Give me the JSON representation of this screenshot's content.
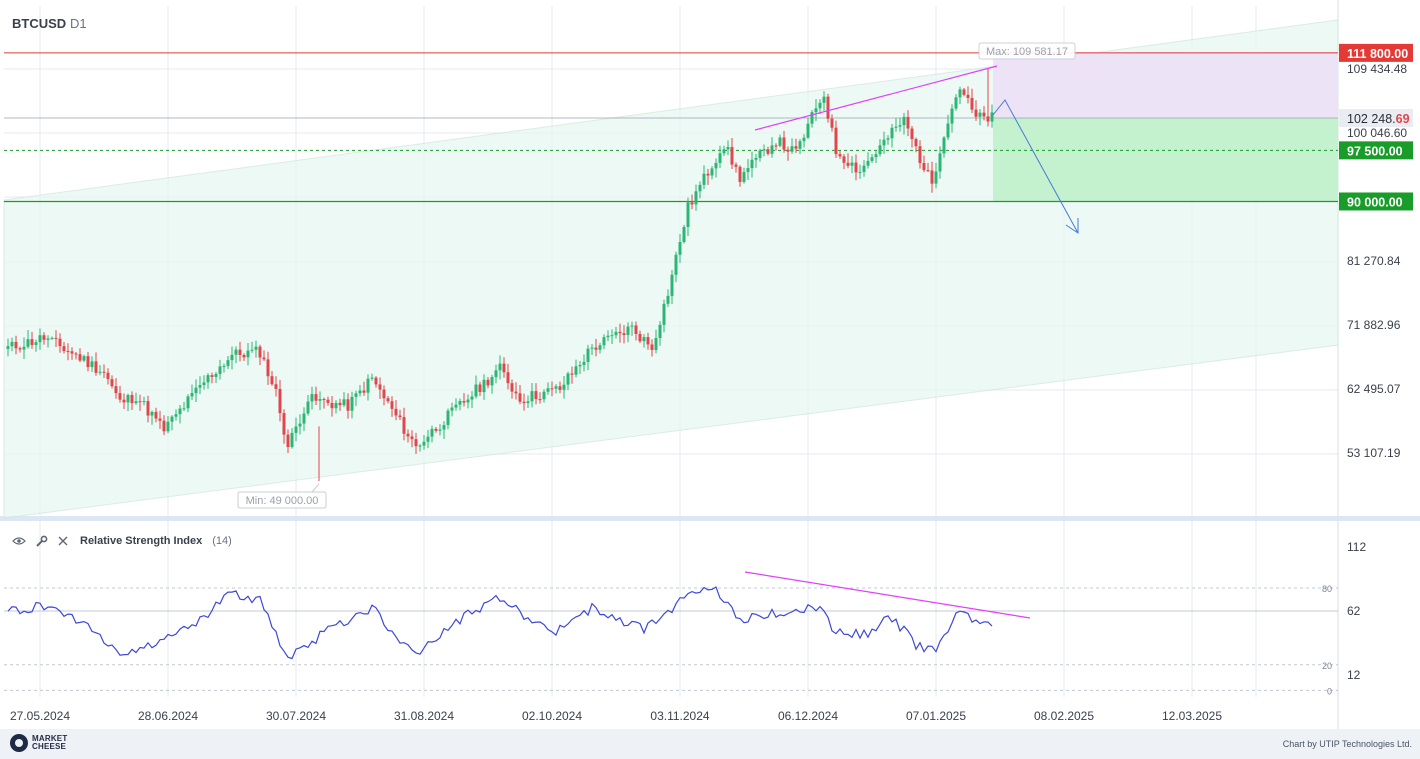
{
  "symbol": "BTCUSD",
  "timeframe": "D1",
  "colors": {
    "up": "#2bb673",
    "down": "#e0474c",
    "resistance": "#e53935",
    "support": "#1a9c2b",
    "trend": "#e040fb",
    "rsi": "#3d47d9",
    "forecast": "#4a78d6"
  },
  "price_axis": {
    "ticks": [
      "109 434.48",
      "100 046.60",
      "81 270.84",
      "71 882.96",
      "62 495.07",
      "53 107.19"
    ]
  },
  "level_badges": {
    "resistance": "111 800.00",
    "current_main": "102 248.",
    "current_frac": "69",
    "target": "97 500.00",
    "support": "90 000.00"
  },
  "max_label": "Max: 109 581.17",
  "min_label": "Min: 49 000.00",
  "rsi_panel": {
    "title": "Relative Strength Index",
    "param": "(14)",
    "axis_ticks": [
      "112",
      "62",
      "12"
    ],
    "level_high": "80",
    "level_low": "20",
    "level_zero": "0"
  },
  "footer": {
    "logo_line1": "MARKET",
    "logo_line2": "CHEESE",
    "credit": "Chart by UTIP Technologies Ltd."
  },
  "chart_data": {
    "type": "candlestick",
    "title": "BTCUSD D1",
    "x_tick_labels": [
      "27.05.2024",
      "28.06.2024",
      "30.07.2024",
      "31.08.2024",
      "02.10.2024",
      "03.11.2024",
      "06.12.2024",
      "07.01.2025",
      "08.02.2025",
      "12.03.2025"
    ],
    "price_range": [
      40000,
      119000
    ],
    "horizontal_levels": {
      "resistance": 111800,
      "target": 97500,
      "support": 90000
    },
    "marked_extremes": {
      "max": 109581.17,
      "min": 49000
    },
    "close_path": [
      {
        "date": "2024-05-27",
        "close": 68500
      },
      {
        "date": "2024-06-05",
        "close": 70000
      },
      {
        "date": "2024-06-12",
        "close": 67800
      },
      {
        "date": "2024-06-20",
        "close": 65000
      },
      {
        "date": "2024-06-24",
        "close": 60500
      },
      {
        "date": "2024-06-28",
        "close": 61500
      },
      {
        "date": "2024-07-05",
        "close": 56500
      },
      {
        "date": "2024-07-15",
        "close": 63500
      },
      {
        "date": "2024-07-22",
        "close": 67500
      },
      {
        "date": "2024-07-29",
        "close": 68000
      },
      {
        "date": "2024-08-02",
        "close": 62000
      },
      {
        "date": "2024-08-05",
        "close": 54000
      },
      {
        "date": "2024-08-10",
        "close": 61000
      },
      {
        "date": "2024-08-20",
        "close": 60000
      },
      {
        "date": "2024-08-26",
        "close": 64000
      },
      {
        "date": "2024-09-06",
        "close": 54000
      },
      {
        "date": "2024-09-15",
        "close": 59000
      },
      {
        "date": "2024-09-27",
        "close": 65500
      },
      {
        "date": "2024-10-02",
        "close": 61000
      },
      {
        "date": "2024-10-12",
        "close": 62500
      },
      {
        "date": "2024-10-20",
        "close": 68500
      },
      {
        "date": "2024-10-30",
        "close": 71500
      },
      {
        "date": "2024-11-04",
        "close": 68500
      },
      {
        "date": "2024-11-08",
        "close": 76500
      },
      {
        "date": "2024-11-13",
        "close": 89000
      },
      {
        "date": "2024-11-22",
        "close": 98500
      },
      {
        "date": "2024-11-26",
        "close": 93500
      },
      {
        "date": "2024-12-05",
        "close": 99000
      },
      {
        "date": "2024-12-10",
        "close": 97000
      },
      {
        "date": "2024-12-17",
        "close": 106000
      },
      {
        "date": "2024-12-20",
        "close": 97500
      },
      {
        "date": "2024-12-26",
        "close": 94500
      },
      {
        "date": "2025-01-06",
        "close": 102000
      },
      {
        "date": "2025-01-13",
        "close": 92500
      },
      {
        "date": "2025-01-16",
        "close": 100000
      },
      {
        "date": "2025-01-20",
        "close": 107000
      },
      {
        "date": "2025-01-24",
        "close": 102248.69
      }
    ],
    "rsi": {
      "name": "Relative Strength Index",
      "period": 14,
      "levels": [
        80,
        20
      ],
      "axis": [
        12,
        62,
        112
      ],
      "values": [
        {
          "date": "2024-05-27",
          "rsi": 62
        },
        {
          "date": "2024-06-05",
          "rsi": 66
        },
        {
          "date": "2024-06-15",
          "rsi": 54
        },
        {
          "date": "2024-06-24",
          "rsi": 28
        },
        {
          "date": "2024-07-05",
          "rsi": 40
        },
        {
          "date": "2024-07-15",
          "rsi": 57
        },
        {
          "date": "2024-07-22",
          "rsi": 76
        },
        {
          "date": "2024-07-29",
          "rsi": 70
        },
        {
          "date": "2024-08-05",
          "rsi": 24
        },
        {
          "date": "2024-08-15",
          "rsi": 47
        },
        {
          "date": "2024-08-26",
          "rsi": 65
        },
        {
          "date": "2024-09-06",
          "rsi": 26
        },
        {
          "date": "2024-09-15",
          "rsi": 52
        },
        {
          "date": "2024-09-27",
          "rsi": 72
        },
        {
          "date": "2024-10-10",
          "rsi": 45
        },
        {
          "date": "2024-10-20",
          "rsi": 64
        },
        {
          "date": "2024-11-02",
          "rsi": 48
        },
        {
          "date": "2024-11-13",
          "rsi": 73
        },
        {
          "date": "2024-11-20",
          "rsi": 80
        },
        {
          "date": "2024-11-26",
          "rsi": 56
        },
        {
          "date": "2024-12-05",
          "rsi": 60
        },
        {
          "date": "2024-12-16",
          "rsi": 66
        },
        {
          "date": "2024-12-20",
          "rsi": 44
        },
        {
          "date": "2024-12-30",
          "rsi": 45
        },
        {
          "date": "2025-01-02",
          "rsi": 61
        },
        {
          "date": "2025-01-09",
          "rsi": 36
        },
        {
          "date": "2025-01-14",
          "rsi": 31
        },
        {
          "date": "2025-01-20",
          "rsi": 63
        },
        {
          "date": "2025-01-24",
          "rsi": 52
        }
      ]
    }
  }
}
